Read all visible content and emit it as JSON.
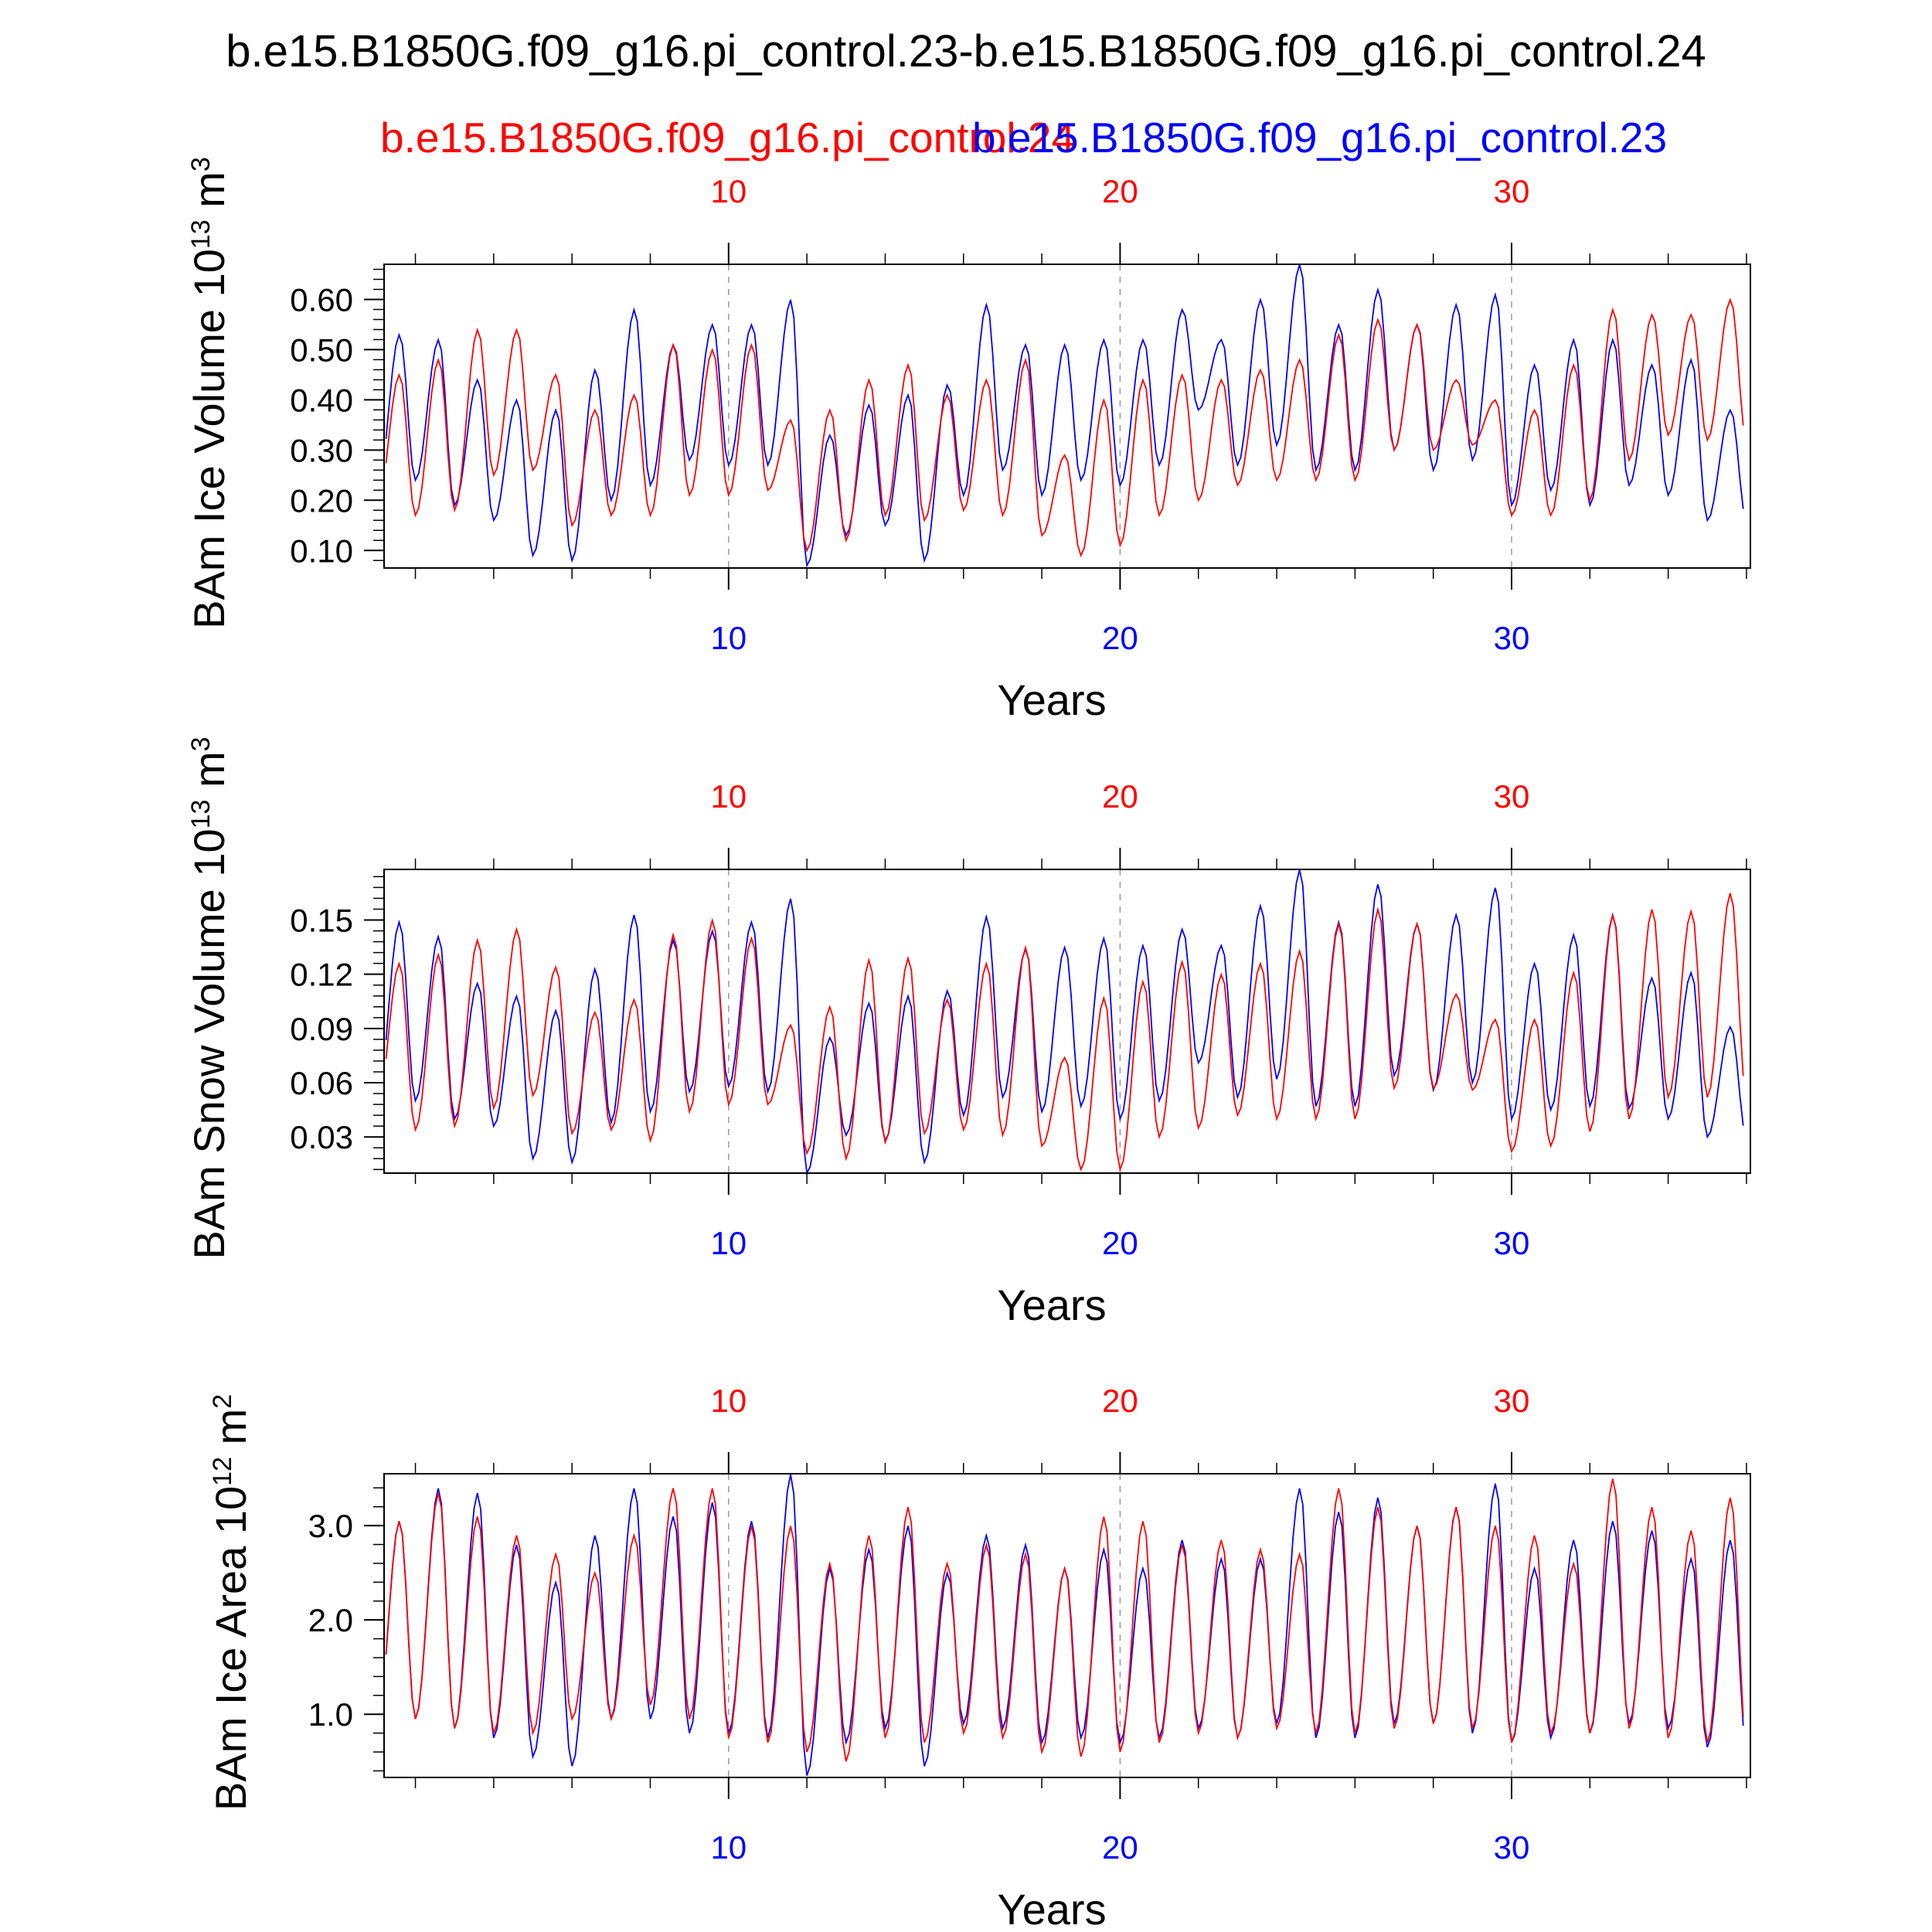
{
  "figure": {
    "title": "b.e15.B1850G.f09_g16.pi_control.23-b.e15.B1850G.f09_g16.pi_control.24",
    "legend": [
      {
        "label": "b.e15.B1850G.f09_g16.pi_control.24",
        "color": "#ff0000"
      },
      {
        "label": "b.e15.B1850G.f09_g16.pi_control.23",
        "color": "#0000ff"
      }
    ]
  },
  "chart_data": [
    {
      "type": "line",
      "ylabel_main": "BAm Ice Volume 10",
      "ylabel_exp": "13",
      "ylabel_unit": " m",
      "ylabel_unit_exp": "3",
      "xlabel": "Years",
      "xlim": [
        1.2,
        36.1
      ],
      "ylim": [
        0.065,
        0.67
      ],
      "yticks": [
        0.1,
        0.2,
        0.3,
        0.4,
        0.5,
        0.6
      ],
      "ytick_labels": [
        "0.10",
        "0.20",
        "0.30",
        "0.40",
        "0.50",
        "0.60"
      ],
      "yminor_step": 0.02,
      "xticks": [
        10,
        20,
        30
      ],
      "xtick_labels": [
        "10",
        "20",
        "30"
      ],
      "x_minor": [
        2,
        4,
        6,
        8,
        12,
        14,
        16,
        18,
        22,
        24,
        26,
        28,
        32,
        34,
        36
      ],
      "grid": "dashed vertical at major x ticks",
      "series": [
        {
          "color": "#0000ff",
          "line_id": "ice-volume-pi-control-23",
          "peaks": [
            0.53,
            0.52,
            0.44,
            0.4,
            0.38,
            0.46,
            0.58,
            0.51,
            0.55,
            0.55,
            0.6,
            0.33,
            0.39,
            0.41,
            0.43,
            0.59,
            0.51,
            0.51,
            0.52,
            0.52,
            0.58,
            0.52,
            0.6,
            0.67,
            0.55,
            0.62,
            0.55,
            0.59,
            0.61,
            0.47,
            0.52,
            0.52,
            0.47,
            0.48,
            0.38
          ],
          "troughs": [
            0.2,
            0.24,
            0.19,
            0.16,
            0.09,
            0.08,
            0.2,
            0.23,
            0.28,
            0.27,
            0.27,
            0.07,
            0.13,
            0.15,
            0.08,
            0.21,
            0.26,
            0.21,
            0.24,
            0.23,
            0.27,
            0.38,
            0.27,
            0.31,
            0.26,
            0.26,
            0.3,
            0.26,
            0.28,
            0.19,
            0.22,
            0.19,
            0.23,
            0.21,
            0.16
          ]
        },
        {
          "color": "#ff0000",
          "line_id": "ice-volume-pi-control-24",
          "peaks": [
            0.45,
            0.48,
            0.54,
            0.54,
            0.45,
            0.38,
            0.41,
            0.51,
            0.5,
            0.51,
            0.36,
            0.38,
            0.44,
            0.47,
            0.41,
            0.44,
            0.48,
            0.29,
            0.4,
            0.44,
            0.45,
            0.44,
            0.46,
            0.48,
            0.53,
            0.56,
            0.55,
            0.44,
            0.4,
            0.38,
            0.47,
            0.58,
            0.57,
            0.57,
            0.6
          ],
          "troughs": [
            0.17,
            0.17,
            0.18,
            0.25,
            0.26,
            0.15,
            0.17,
            0.17,
            0.21,
            0.21,
            0.22,
            0.1,
            0.12,
            0.17,
            0.16,
            0.18,
            0.17,
            0.13,
            0.09,
            0.11,
            0.17,
            0.2,
            0.23,
            0.24,
            0.24,
            0.24,
            0.3,
            0.3,
            0.31,
            0.17,
            0.17,
            0.2,
            0.28,
            0.33,
            0.32
          ]
        }
      ]
    },
    {
      "type": "line",
      "ylabel_main": "BAm Snow Volume 10",
      "ylabel_exp": "13",
      "ylabel_unit": " m",
      "ylabel_unit_exp": "3",
      "xlabel": "Years",
      "xlim": [
        1.2,
        36.1
      ],
      "ylim": [
        0.01,
        0.178
      ],
      "yticks": [
        0.03,
        0.06,
        0.09,
        0.12,
        0.15
      ],
      "ytick_labels": [
        "0.03",
        "0.06",
        "0.09",
        "0.12",
        "0.15"
      ],
      "yminor_step": 0.006,
      "xticks": [
        10,
        20,
        30
      ],
      "xtick_labels": [
        "10",
        "20",
        "30"
      ],
      "x_minor": [
        2,
        4,
        6,
        8,
        12,
        14,
        16,
        18,
        22,
        24,
        26,
        28,
        32,
        34,
        36
      ],
      "grid": "dashed vertical at major x ticks",
      "series": [
        {
          "color": "#0000ff",
          "line_id": "snow-volume-pi-control-23",
          "peaks": [
            0.149,
            0.141,
            0.115,
            0.108,
            0.1,
            0.123,
            0.153,
            0.139,
            0.144,
            0.149,
            0.162,
            0.085,
            0.104,
            0.108,
            0.111,
            0.152,
            0.134,
            0.135,
            0.14,
            0.136,
            0.145,
            0.136,
            0.158,
            0.178,
            0.149,
            0.17,
            0.148,
            0.153,
            0.168,
            0.126,
            0.142,
            0.153,
            0.118,
            0.121,
            0.091
          ],
          "troughs": [
            0.045,
            0.05,
            0.04,
            0.036,
            0.018,
            0.016,
            0.038,
            0.044,
            0.055,
            0.058,
            0.055,
            0.01,
            0.031,
            0.028,
            0.016,
            0.042,
            0.052,
            0.044,
            0.047,
            0.04,
            0.05,
            0.071,
            0.052,
            0.062,
            0.047,
            0.047,
            0.064,
            0.056,
            0.06,
            0.04,
            0.045,
            0.047,
            0.046,
            0.04,
            0.03
          ]
        },
        {
          "color": "#ff0000",
          "line_id": "snow-volume-pi-control-24",
          "peaks": [
            0.126,
            0.131,
            0.139,
            0.145,
            0.124,
            0.099,
            0.106,
            0.142,
            0.15,
            0.14,
            0.092,
            0.102,
            0.128,
            0.129,
            0.106,
            0.126,
            0.135,
            0.074,
            0.107,
            0.116,
            0.127,
            0.12,
            0.126,
            0.133,
            0.148,
            0.156,
            0.148,
            0.109,
            0.095,
            0.095,
            0.121,
            0.153,
            0.156,
            0.155,
            0.165
          ],
          "troughs": [
            0.042,
            0.034,
            0.036,
            0.046,
            0.053,
            0.032,
            0.034,
            0.028,
            0.044,
            0.048,
            0.048,
            0.021,
            0.018,
            0.027,
            0.032,
            0.034,
            0.031,
            0.025,
            0.012,
            0.012,
            0.03,
            0.035,
            0.042,
            0.04,
            0.04,
            0.04,
            0.057,
            0.057,
            0.056,
            0.022,
            0.025,
            0.033,
            0.04,
            0.052,
            0.052
          ]
        }
      ]
    },
    {
      "type": "line",
      "ylabel_main": "BAm Ice Area 10",
      "ylabel_exp": "12",
      "ylabel_unit": " m",
      "ylabel_unit_exp": "2",
      "xlabel": "Years",
      "xlim": [
        1.2,
        36.1
      ],
      "ylim": [
        0.33,
        3.55
      ],
      "yticks": [
        1.0,
        2.0,
        3.0
      ],
      "ytick_labels": [
        "1.0",
        "2.0",
        "3.0"
      ],
      "yminor_step": 0.2,
      "xticks": [
        10,
        20,
        30
      ],
      "xtick_labels": [
        "10",
        "20",
        "30"
      ],
      "x_minor": [
        2,
        4,
        6,
        8,
        12,
        14,
        16,
        18,
        22,
        24,
        26,
        28,
        32,
        34,
        36
      ],
      "grid": "dashed vertical at major x ticks",
      "series": [
        {
          "color": "#0000ff",
          "line_id": "ice-area-pi-control-23",
          "peaks": [
            3.05,
            3.4,
            3.35,
            2.8,
            2.4,
            2.9,
            3.4,
            3.1,
            3.25,
            3.05,
            3.55,
            2.55,
            2.75,
            3.0,
            2.5,
            2.9,
            2.8,
            2.55,
            2.75,
            2.55,
            2.85,
            2.65,
            2.65,
            3.4,
            3.15,
            3.3,
            3.0,
            3.2,
            3.45,
            2.55,
            2.85,
            3.05,
            2.95,
            2.65,
            2.85
          ],
          "troughs": [
            0.8,
            0.95,
            0.85,
            0.75,
            0.55,
            0.45,
            0.95,
            0.95,
            0.8,
            0.8,
            0.75,
            0.35,
            0.7,
            0.85,
            0.45,
            0.9,
            0.85,
            0.7,
            0.75,
            0.7,
            0.75,
            0.85,
            0.75,
            0.9,
            0.75,
            0.75,
            0.9,
            0.9,
            0.8,
            0.7,
            0.75,
            0.8,
            0.9,
            0.85,
            0.65
          ]
        },
        {
          "color": "#ff0000",
          "line_id": "ice-area-pi-control-24",
          "peaks": [
            3.05,
            3.35,
            3.1,
            2.9,
            2.7,
            2.5,
            2.9,
            3.4,
            3.4,
            3.0,
            3.0,
            2.6,
            2.9,
            3.2,
            2.6,
            2.8,
            2.7,
            2.55,
            3.1,
            3.05,
            2.8,
            2.85,
            2.75,
            2.7,
            3.4,
            3.2,
            3.0,
            3.2,
            3.0,
            2.9,
            2.6,
            3.5,
            3.2,
            2.95,
            3.3
          ],
          "troughs": [
            0.8,
            0.95,
            0.85,
            0.8,
            0.8,
            0.95,
            0.95,
            1.1,
            0.95,
            0.75,
            0.7,
            0.6,
            0.5,
            0.75,
            0.7,
            0.8,
            0.75,
            0.6,
            0.55,
            0.6,
            0.7,
            0.8,
            0.75,
            0.85,
            0.8,
            0.8,
            0.85,
            0.9,
            0.85,
            0.7,
            0.8,
            0.8,
            0.85,
            0.75,
            0.7
          ]
        }
      ]
    }
  ]
}
